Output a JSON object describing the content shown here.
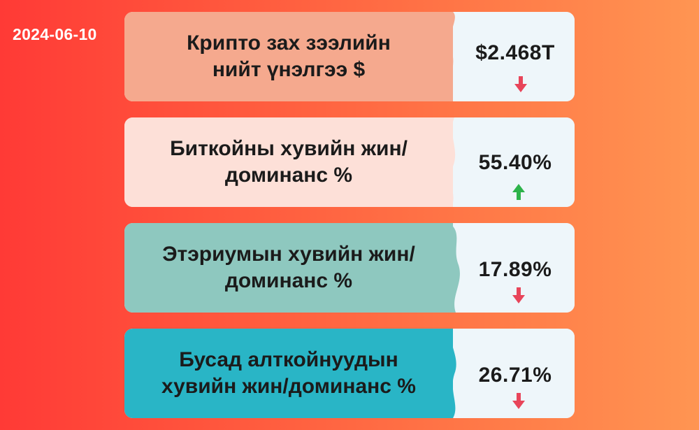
{
  "date": "2024-06-10",
  "cards": [
    {
      "label_line1": "Крипто зах зээлийн",
      "label_line2": "нийт үнэлгээ $",
      "value": "$2.468T",
      "trend": "down",
      "bg": "#f5a98e",
      "panel": "#eef6fa"
    },
    {
      "label_line1": "Биткойны хувийн жин/",
      "label_line2": "доминанс %",
      "value": "55.40%",
      "trend": "up",
      "bg": "#fde0d8",
      "panel": "#eef6fa"
    },
    {
      "label_line1": "Этэриумын хувийн жин/",
      "label_line2": "доминанс %",
      "value": "17.89%",
      "trend": "down",
      "bg": "#8ec8bf",
      "panel": "#eef6fa"
    },
    {
      "label_line1": "Бусад алткойнуудын",
      "label_line2": "хувийн жин/доминанс %",
      "value": "26.71%",
      "trend": "down",
      "bg": "#29b5c6",
      "panel": "#eef6fa"
    }
  ],
  "colors": {
    "down": "#e8455a",
    "up": "#2db34a",
    "text": "#1b1b1b"
  },
  "icons": {
    "down": "arrow-down-icon",
    "up": "arrow-up-icon"
  }
}
